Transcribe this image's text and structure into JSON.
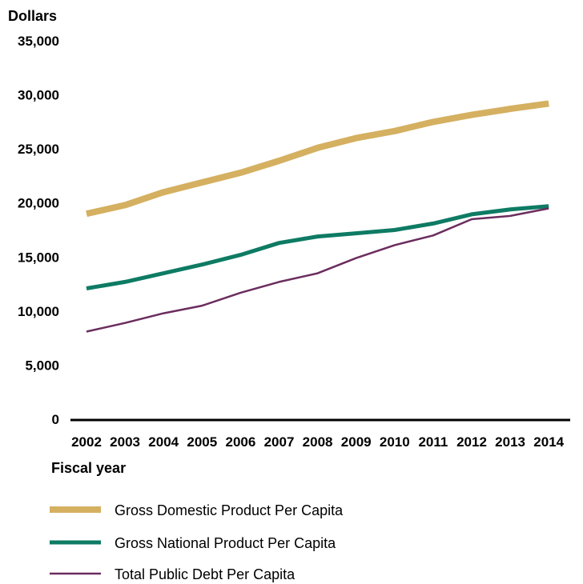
{
  "chart_data": {
    "type": "line",
    "ylabel": "Dollars",
    "xlabel": "Fiscal year",
    "ylim": [
      0,
      35000
    ],
    "yticks": [
      "0",
      "5,000",
      "10,000",
      "15,000",
      "20,000",
      "25,000",
      "30,000",
      "35,000"
    ],
    "categories": [
      "2002",
      "2003",
      "2004",
      "2005",
      "2006",
      "2007",
      "2008",
      "2009",
      "2010",
      "2011",
      "2012",
      "2013",
      "2014"
    ],
    "grid": false,
    "legend_position": "bottom",
    "series": [
      {
        "name": "Gross Domestic Product Per Capita",
        "color": "#d4b060",
        "line_weight": "thick",
        "values": [
          19000,
          19800,
          21000,
          21900,
          22800,
          23900,
          25100,
          26000,
          26650,
          27500,
          28150,
          28700,
          29200
        ]
      },
      {
        "name": "Gross National Product Per Capita",
        "color": "#0e7b64",
        "line_weight": "medium",
        "values": [
          12100,
          12700,
          13500,
          14300,
          15200,
          16300,
          16900,
          17200,
          17500,
          18100,
          18950,
          19400,
          19700
        ]
      },
      {
        "name": "Total Public Debt Per Capita",
        "color": "#6b2d5e",
        "line_weight": "thin",
        "values": [
          8100,
          8900,
          9800,
          10500,
          11700,
          12700,
          13500,
          14900,
          16100,
          17000,
          18500,
          18800,
          19500
        ]
      }
    ]
  }
}
